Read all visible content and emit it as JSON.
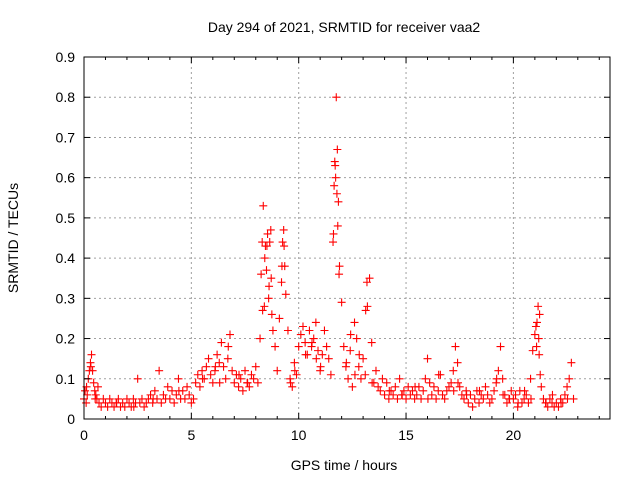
{
  "chart_data": {
    "type": "scatter",
    "title": "Day 294 of 2021, SRMTID for receiver vaa2",
    "xlabel": "GPS time / hours",
    "ylabel": "SRMTID / TECUs",
    "xlim": [
      0,
      24.5
    ],
    "ylim": [
      0,
      0.9
    ],
    "x_ticks": [
      0,
      5,
      10,
      15,
      20
    ],
    "y_ticks": [
      0,
      0.1,
      0.2,
      0.3,
      0.4,
      0.5,
      0.6,
      0.7,
      0.8,
      0.9
    ],
    "x_tick_labels": [
      "0",
      "5",
      "10",
      "15",
      "20"
    ],
    "y_tick_labels": [
      "0",
      "0.1",
      "0.2",
      "0.3",
      "0.4",
      "0.5",
      "0.6",
      "0.7",
      "0.8",
      "0.9"
    ],
    "grid": true,
    "marker": "+",
    "series": [
      {
        "name": "SRMTID",
        "color": "#ff0000",
        "x": [
          0.0,
          0.05,
          0.1,
          0.15,
          0.2,
          0.25,
          0.3,
          0.35,
          0.4,
          0.45,
          0.5,
          0.55,
          0.6,
          0.65,
          0.7,
          0.8,
          0.9,
          1.0,
          1.1,
          1.2,
          1.3,
          1.4,
          1.5,
          1.6,
          1.7,
          1.8,
          1.9,
          2.0,
          2.1,
          2.2,
          2.3,
          2.4,
          2.5,
          2.6,
          2.7,
          2.8,
          2.9,
          3.0,
          3.1,
          3.2,
          3.3,
          3.4,
          3.5,
          3.6,
          3.7,
          3.8,
          3.9,
          4.0,
          4.1,
          4.2,
          4.3,
          4.4,
          4.5,
          4.6,
          4.7,
          4.8,
          4.9,
          5.0,
          5.1,
          5.2,
          5.3,
          5.4,
          5.5,
          5.6,
          5.7,
          5.8,
          5.9,
          6.0,
          6.1,
          6.2,
          6.3,
          6.4,
          6.5,
          6.6,
          6.7,
          6.8,
          6.9,
          7.0,
          7.1,
          7.2,
          7.3,
          7.4,
          7.5,
          7.6,
          7.7,
          7.8,
          7.9,
          8.0,
          8.1,
          8.2,
          8.25,
          8.3,
          8.35,
          8.4,
          8.45,
          8.5,
          8.55,
          8.6,
          8.65,
          8.7,
          8.75,
          8.8,
          8.9,
          9.0,
          9.1,
          9.2,
          9.25,
          9.3,
          9.35,
          9.4,
          9.5,
          9.6,
          9.7,
          9.8,
          9.9,
          10.0,
          10.1,
          10.2,
          10.3,
          10.4,
          10.5,
          10.6,
          10.7,
          10.8,
          10.9,
          11.0,
          11.1,
          11.2,
          11.3,
          11.4,
          11.5,
          11.6,
          11.65,
          11.7,
          11.75,
          11.8,
          11.85,
          11.9,
          12.0,
          12.1,
          12.2,
          12.3,
          12.4,
          12.5,
          12.6,
          12.7,
          12.8,
          12.9,
          13.0,
          13.1,
          13.2,
          13.3,
          13.4,
          13.5,
          13.6,
          13.7,
          13.8,
          13.9,
          14.0,
          14.1,
          14.2,
          14.3,
          14.4,
          14.5,
          14.6,
          14.7,
          14.8,
          14.9,
          15.0,
          15.1,
          15.2,
          15.3,
          15.4,
          15.5,
          15.6,
          15.7,
          15.8,
          15.9,
          16.0,
          16.1,
          16.2,
          16.3,
          16.4,
          16.5,
          16.6,
          16.7,
          16.8,
          16.9,
          17.0,
          17.1,
          17.2,
          17.3,
          17.4,
          17.5,
          17.6,
          17.7,
          17.8,
          17.9,
          18.0,
          18.1,
          18.2,
          18.3,
          18.4,
          18.5,
          18.6,
          18.7,
          18.8,
          18.9,
          19.0,
          19.1,
          19.2,
          19.3,
          19.4,
          19.5,
          19.6,
          19.7,
          19.8,
          19.9,
          20.0,
          20.1,
          20.2,
          20.3,
          20.4,
          20.5,
          20.6,
          20.7,
          20.8,
          20.9,
          21.0,
          21.05,
          21.1,
          21.15,
          21.2,
          21.25,
          21.3,
          21.4,
          21.5,
          21.6,
          21.7,
          21.8,
          21.9,
          22.0,
          22.1,
          22.2,
          22.3,
          22.4,
          22.5,
          22.6,
          22.7,
          22.8,
          8.32,
          8.42,
          8.52,
          8.62,
          8.72,
          9.22,
          9.32,
          11.62,
          11.68,
          11.72,
          11.78,
          11.82,
          11.88,
          13.12,
          13.18,
          21.08,
          21.18,
          21.22,
          0.12,
          0.32,
          0.52,
          1.52,
          2.32,
          3.22,
          4.42,
          5.52,
          6.12,
          6.32,
          6.72,
          7.22,
          7.62,
          9.62,
          9.82,
          10.32,
          10.62,
          10.82,
          11.02,
          12.22,
          12.42,
          12.62,
          12.82,
          13.42,
          14.22,
          14.82,
          15.42,
          16.02,
          16.52,
          17.22,
          17.42,
          17.82,
          18.42,
          19.22,
          19.52,
          19.82,
          20.22,
          20.52,
          20.82,
          21.52,
          21.82,
          22.22,
          22.52
        ],
        "y": [
          0.05,
          0.07,
          0.04,
          0.06,
          0.1,
          0.12,
          0.14,
          0.16,
          0.12,
          0.09,
          0.07,
          0.06,
          0.05,
          0.08,
          0.04,
          0.03,
          0.05,
          0.04,
          0.03,
          0.05,
          0.04,
          0.03,
          0.04,
          0.05,
          0.03,
          0.04,
          0.03,
          0.05,
          0.04,
          0.03,
          0.05,
          0.04,
          0.1,
          0.04,
          0.05,
          0.03,
          0.04,
          0.05,
          0.06,
          0.04,
          0.07,
          0.05,
          0.12,
          0.04,
          0.06,
          0.05,
          0.08,
          0.05,
          0.07,
          0.04,
          0.06,
          0.1,
          0.05,
          0.07,
          0.05,
          0.08,
          0.06,
          0.04,
          0.05,
          0.09,
          0.11,
          0.08,
          0.12,
          0.1,
          0.13,
          0.15,
          0.11,
          0.09,
          0.12,
          0.16,
          0.14,
          0.19,
          0.13,
          0.1,
          0.15,
          0.21,
          0.12,
          0.09,
          0.11,
          0.08,
          0.1,
          0.07,
          0.12,
          0.09,
          0.08,
          0.11,
          0.1,
          0.13,
          0.09,
          0.2,
          0.36,
          0.44,
          0.53,
          0.28,
          0.43,
          0.37,
          0.46,
          0.3,
          0.44,
          0.47,
          0.26,
          0.22,
          0.18,
          0.12,
          0.25,
          0.34,
          0.44,
          0.47,
          0.38,
          0.31,
          0.22,
          0.1,
          0.08,
          0.14,
          0.11,
          0.18,
          0.21,
          0.23,
          0.19,
          0.16,
          0.22,
          0.18,
          0.2,
          0.24,
          0.17,
          0.12,
          0.16,
          0.22,
          0.18,
          0.15,
          0.11,
          0.44,
          0.58,
          0.63,
          0.8,
          0.67,
          0.54,
          0.38,
          0.29,
          0.18,
          0.13,
          0.1,
          0.17,
          0.08,
          0.24,
          0.2,
          0.13,
          0.1,
          0.15,
          0.11,
          0.28,
          0.35,
          0.19,
          0.09,
          0.12,
          0.08,
          0.07,
          0.1,
          0.06,
          0.09,
          0.05,
          0.07,
          0.06,
          0.08,
          0.05,
          0.1,
          0.06,
          0.07,
          0.05,
          0.08,
          0.06,
          0.07,
          0.05,
          0.06,
          0.08,
          0.05,
          0.07,
          0.1,
          0.15,
          0.09,
          0.06,
          0.08,
          0.05,
          0.07,
          0.11,
          0.06,
          0.05,
          0.07,
          0.08,
          0.09,
          0.12,
          0.18,
          0.14,
          0.08,
          0.06,
          0.05,
          0.07,
          0.04,
          0.06,
          0.03,
          0.05,
          0.07,
          0.04,
          0.06,
          0.05,
          0.08,
          0.06,
          0.04,
          0.05,
          0.07,
          0.09,
          0.12,
          0.18,
          0.1,
          0.06,
          0.04,
          0.05,
          0.07,
          0.05,
          0.06,
          0.03,
          0.07,
          0.04,
          0.05,
          0.06,
          0.04,
          0.1,
          0.17,
          0.21,
          0.23,
          0.24,
          0.28,
          0.16,
          0.11,
          0.08,
          0.05,
          0.04,
          0.03,
          0.05,
          0.04,
          0.03,
          0.04,
          0.03,
          0.05,
          0.04,
          0.06,
          0.08,
          0.1,
          0.14,
          0.05,
          0.27,
          0.4,
          0.43,
          0.33,
          0.35,
          0.38,
          0.43,
          0.46,
          0.64,
          0.6,
          0.56,
          0.48,
          0.36,
          0.27,
          0.34,
          0.18,
          0.2,
          0.26,
          0.08,
          0.13,
          0.05,
          0.04,
          0.03,
          0.05,
          0.07,
          0.1,
          0.13,
          0.09,
          0.18,
          0.11,
          0.09,
          0.09,
          0.12,
          0.16,
          0.19,
          0.15,
          0.13,
          0.14,
          0.21,
          0.11,
          0.16,
          0.09,
          0.07,
          0.06,
          0.08,
          0.05,
          0.11,
          0.07,
          0.09,
          0.06,
          0.07,
          0.1,
          0.06,
          0.05,
          0.04,
          0.07,
          0.05,
          0.04,
          0.06,
          0.04,
          0.05
        ]
      }
    ]
  }
}
